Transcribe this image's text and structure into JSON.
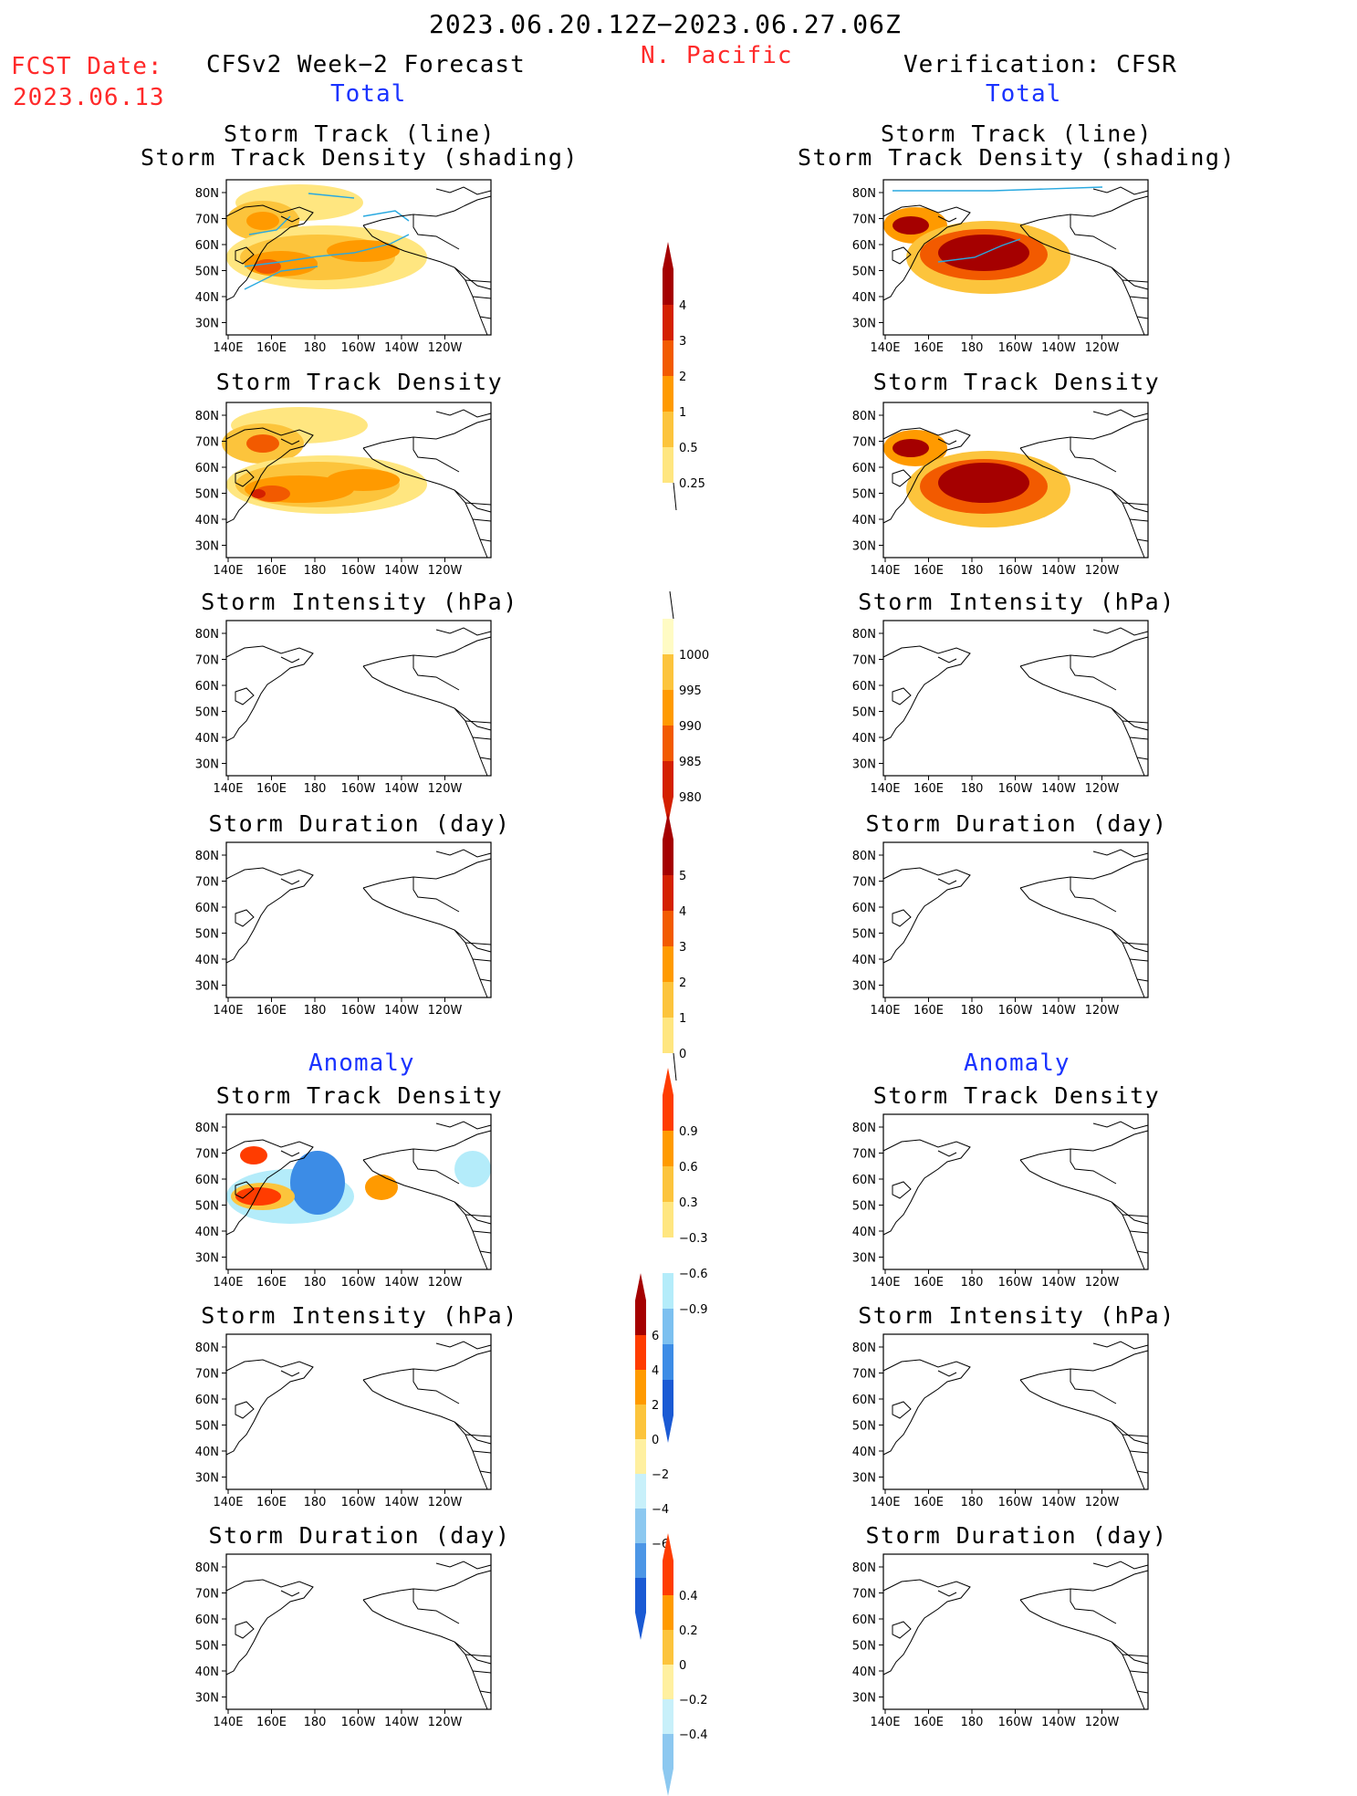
{
  "header": {
    "date_range": "2023.06.20.12Z−2023.06.27.06Z",
    "region": "N. Pacific",
    "fcst_label": "FCST Date:",
    "fcst_date": "2023.06.13",
    "left_title": "CFSv2 Week−2 Forecast",
    "right_title": "Verification: CFSR",
    "total_label": "Total",
    "anomaly_label": "Anomaly"
  },
  "panel_titles": {
    "track_line": "Storm Track (line)",
    "track_shading": "Storm Track Density (shading)",
    "density": "Storm Track Density",
    "intensity": "Storm Intensity (hPa)",
    "duration": "Storm Duration (day)"
  },
  "axes": {
    "lat_labels": [
      "80N",
      "70N",
      "60N",
      "50N",
      "40N",
      "30N"
    ],
    "lon_labels": [
      "140E",
      "160E",
      "180",
      "160W",
      "140W",
      "120W"
    ]
  },
  "colorbars": {
    "density_total": {
      "labels": [
        "4",
        "3",
        "2",
        "1",
        "0.5",
        "0.25"
      ],
      "colors": [
        "#a50000",
        "#d42000",
        "#f25a00",
        "#ff9a00",
        "#fcc43c",
        "#ffe680",
        "#fffbc4"
      ]
    },
    "intensity_total": {
      "labels": [
        "1000",
        "995",
        "990",
        "985",
        "980"
      ],
      "colors": [
        "#fffbc4",
        "#fcc43c",
        "#ff9a00",
        "#f25a00",
        "#d42000",
        "#a50000"
      ]
    },
    "duration_total": {
      "labels": [
        "5",
        "4",
        "3",
        "2",
        "1",
        "0"
      ],
      "colors": [
        "#a50000",
        "#d42000",
        "#f25a00",
        "#ff9a00",
        "#fcc43c",
        "#ffe680",
        "#fffbc4"
      ]
    },
    "density_anom": {
      "labels": [
        "0.9",
        "0.6",
        "0.3",
        "−0.3",
        "−0.6",
        "−0.9"
      ],
      "colors": [
        "#ff3c00",
        "#ff9a00",
        "#fcc43c",
        "#ffe680",
        "#ffffff",
        "#b4ecfa",
        "#7cc0f0",
        "#3c8ce6",
        "#1a5ad4"
      ]
    },
    "intensity_anom": {
      "labels": [
        "6",
        "4",
        "2",
        "0",
        "−2",
        "−4",
        "−6"
      ],
      "colors": [
        "#a50000",
        "#ff3c00",
        "#ff9a00",
        "#fcc43c",
        "#fff0a0",
        "#c8f0fa",
        "#8cc8f0",
        "#4c96e6",
        "#1a5ad4"
      ]
    },
    "duration_anom": {
      "labels": [
        "0.4",
        "0.2",
        "0",
        "−0.2",
        "−0.4"
      ],
      "colors": [
        "#ff3c00",
        "#ff9a00",
        "#fcc43c",
        "#fff0a0",
        "#c8f0fa",
        "#8cc8f0",
        "#3c8ce6",
        "#1a5ad4"
      ]
    }
  },
  "colors": {
    "red_text": "#ff2a2a",
    "blue_text": "#1a33ff",
    "track_line": "#29a9e0"
  }
}
